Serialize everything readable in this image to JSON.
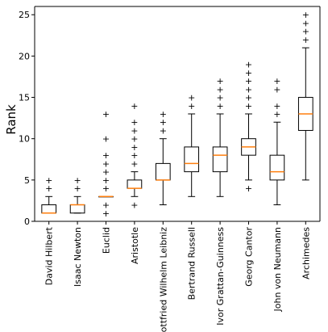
{
  "chart_data": {
    "type": "boxplot",
    "ylabel": "Rank",
    "xlabel": "",
    "ylim": [
      0,
      26
    ],
    "yticks": [
      0,
      5,
      10,
      15,
      20,
      25
    ],
    "grid": false,
    "colors": {
      "box": "#000000",
      "median": "#ff7f0e",
      "flier": "#000000"
    },
    "categories": [
      "David Hilbert",
      "Isaac Newton",
      "Euclid",
      "Aristotle",
      "Gottfried Wilhelm Leibniz",
      "Bertrand Russell",
      "Ivor Grattan-Guinness",
      "Georg Cantor",
      "John von Neumann",
      "Archimedes"
    ],
    "boxes": [
      {
        "whislo": 1,
        "q1": 1,
        "med": 1,
        "q3": 2,
        "whishi": 3,
        "fliers": [
          4,
          5
        ]
      },
      {
        "whislo": 1,
        "q1": 1,
        "med": 2,
        "q3": 2,
        "whishi": 3,
        "fliers": [
          4,
          5
        ]
      },
      {
        "whislo": 3,
        "q1": 3,
        "med": 3,
        "q3": 3,
        "whishi": 3,
        "fliers": [
          1,
          2,
          4,
          5,
          6,
          7,
          8,
          10,
          13
        ]
      },
      {
        "whislo": 3,
        "q1": 4,
        "med": 4,
        "q3": 5,
        "whishi": 6,
        "fliers": [
          2,
          7,
          8,
          9,
          10,
          11,
          12,
          14
        ]
      },
      {
        "whislo": 2,
        "q1": 5,
        "med": 5,
        "q3": 7,
        "whishi": 10,
        "fliers": [
          11,
          12,
          13
        ]
      },
      {
        "whislo": 3,
        "q1": 6,
        "med": 7,
        "q3": 9,
        "whishi": 13,
        "fliers": [
          14,
          15
        ]
      },
      {
        "whislo": 3,
        "q1": 6,
        "med": 8,
        "q3": 9,
        "whishi": 13,
        "fliers": [
          14,
          15,
          16,
          17
        ]
      },
      {
        "whislo": 5,
        "q1": 8,
        "med": 9,
        "q3": 10,
        "whishi": 13,
        "fliers": [
          4,
          14,
          15,
          16,
          17,
          18,
          19
        ]
      },
      {
        "whislo": 2,
        "q1": 5,
        "med": 6,
        "q3": 8,
        "whishi": 12,
        "fliers": [
          13,
          14,
          16,
          17
        ]
      },
      {
        "whislo": 5,
        "q1": 11,
        "med": 13,
        "q3": 15,
        "whishi": 21,
        "fliers": [
          22,
          23,
          24,
          25
        ]
      }
    ]
  }
}
